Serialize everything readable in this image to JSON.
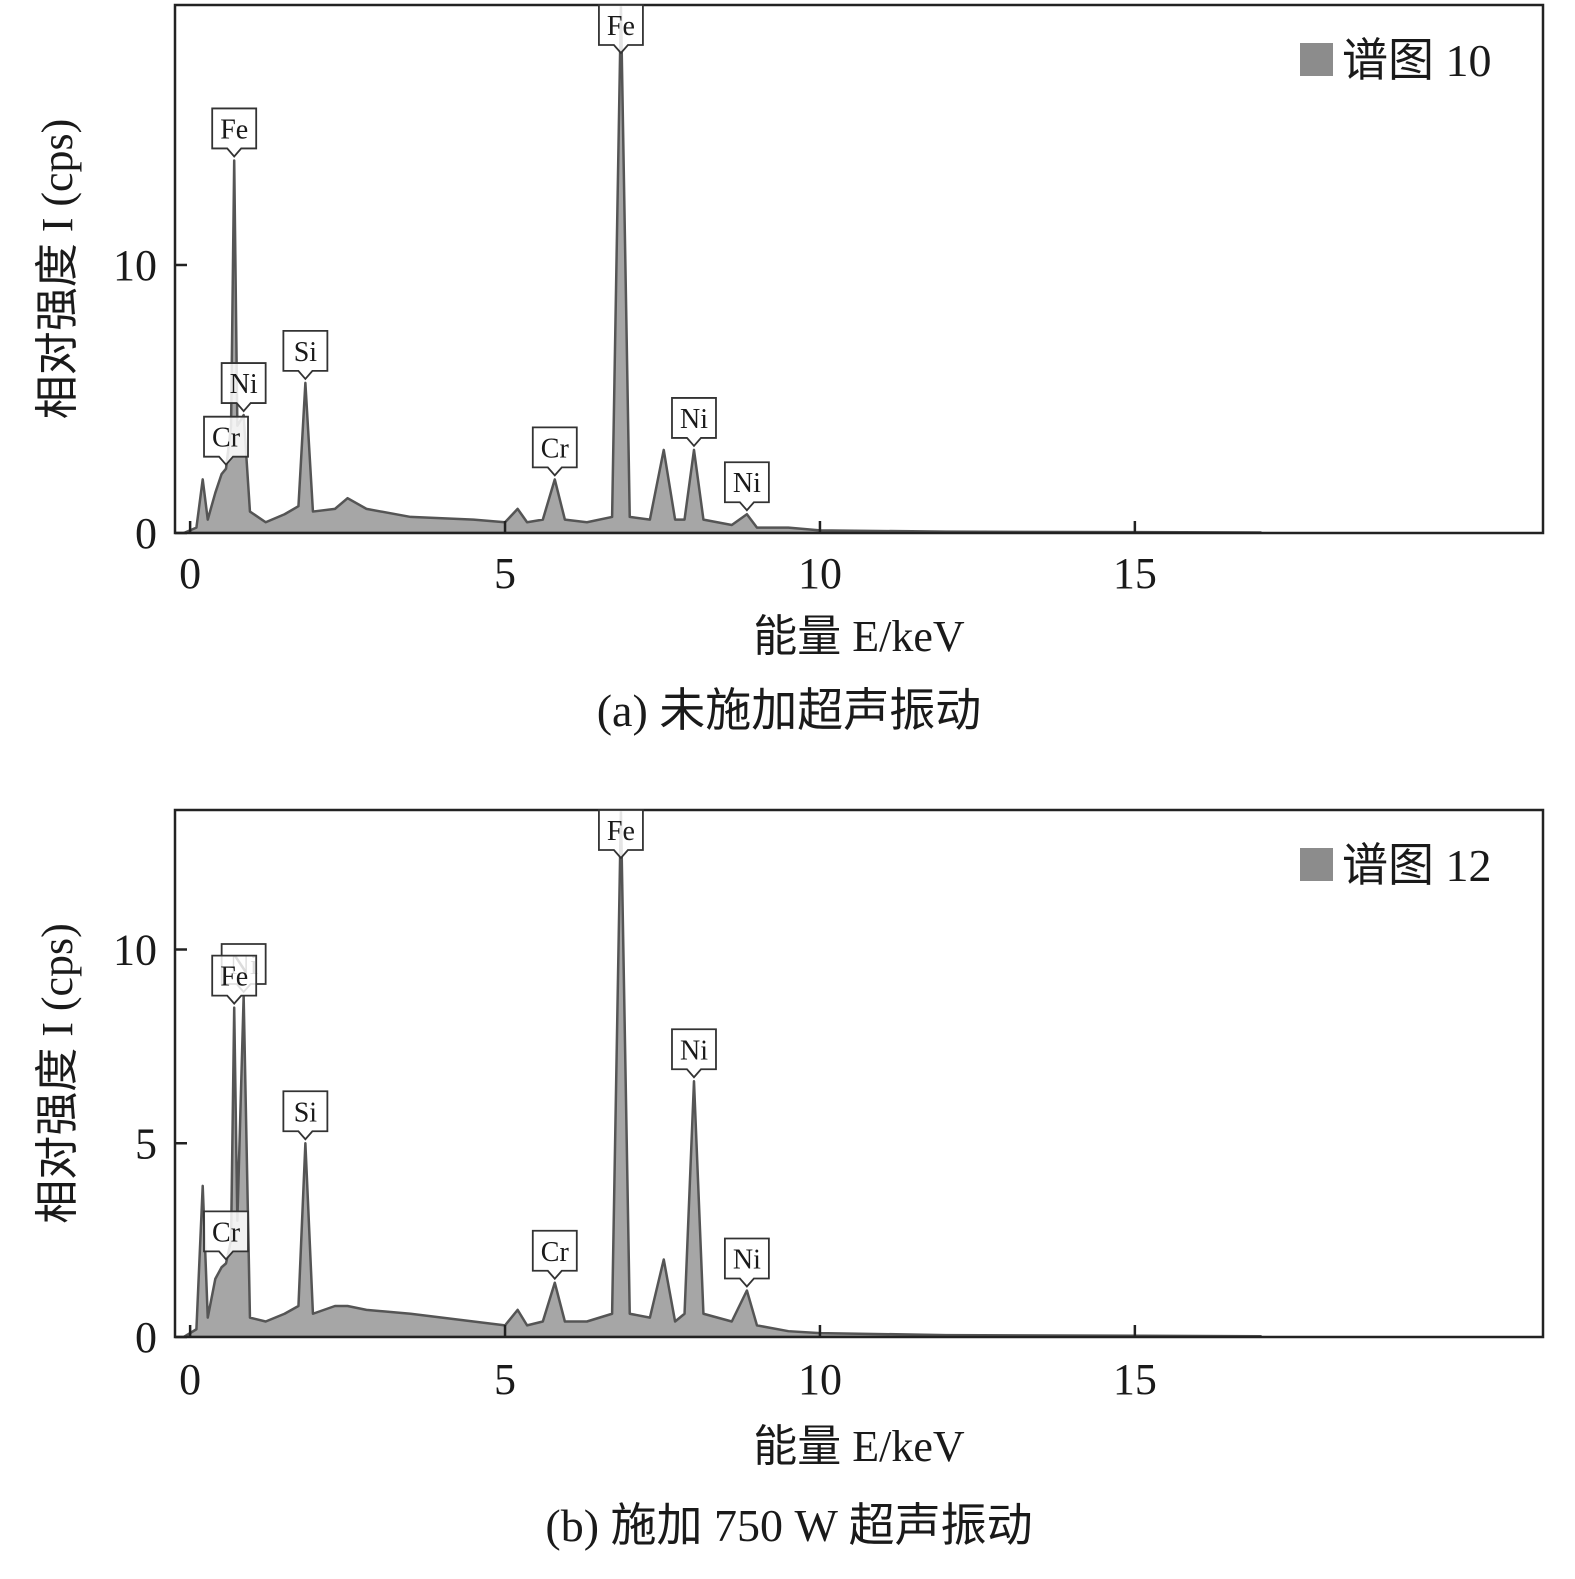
{
  "chart_data": [
    {
      "type": "area",
      "xlabel": "能量 E/keV",
      "ylabel": "相对强度 I (cps)",
      "caption": "(a) 未施加超声振动",
      "xlim": [
        -0.24,
        21.48
      ],
      "ylim": [
        0,
        19.7
      ],
      "xticks": [
        0,
        5,
        10,
        15
      ],
      "yticks": [
        0,
        10
      ],
      "legend": "upper right",
      "x": [
        -0.1,
        0.1,
        0.2,
        0.28,
        0.4,
        0.5,
        0.57,
        0.65,
        0.7,
        0.75,
        0.85,
        0.95,
        1.2,
        1.5,
        1.72,
        1.83,
        1.95,
        2.3,
        2.5,
        2.8,
        3.5,
        4.5,
        5.0,
        5.2,
        5.35,
        5.6,
        5.79,
        5.95,
        6.3,
        6.7,
        6.84,
        6.98,
        7.3,
        7.52,
        7.7,
        7.85,
        8.0,
        8.15,
        8.6,
        8.84,
        9.0,
        9.5,
        10,
        12,
        17
      ],
      "series": [
        {
          "name": "谱图 10",
          "color": "#a6a6a6",
          "line_color": "#555555",
          "legend_color": "#8c8c8c",
          "values": [
            0,
            0.2,
            2.0,
            0.5,
            1.5,
            2.2,
            2.4,
            4.0,
            13.9,
            4.0,
            4.4,
            0.8,
            0.4,
            0.7,
            1.0,
            5.6,
            0.8,
            0.9,
            1.3,
            0.9,
            0.6,
            0.5,
            0.4,
            0.9,
            0.4,
            0.5,
            2.0,
            0.5,
            0.4,
            0.6,
            19.7,
            0.6,
            0.5,
            3.1,
            0.5,
            0.5,
            3.1,
            0.5,
            0.3,
            0.7,
            0.2,
            0.2,
            0.1,
            0.05,
            0.02
          ]
        }
      ],
      "annotations": [
        {
          "text": "Fe",
          "x": 0.7
        },
        {
          "text": "Ni",
          "x": 0.85
        },
        {
          "text": "Cr",
          "x": 0.57
        },
        {
          "text": "Si",
          "x": 1.83
        },
        {
          "text": "Cr",
          "x": 5.79
        },
        {
          "text": "Fe",
          "x": 6.84
        },
        {
          "text": "Ni",
          "x": 8.0
        },
        {
          "text": "Ni",
          "x": 8.84
        }
      ]
    },
    {
      "type": "area",
      "xlabel": "能量 E/keV",
      "ylabel": "相对强度 I (cps)",
      "caption": "(b) 施加 750 W 超声振动",
      "xlim": [
        -0.24,
        21.48
      ],
      "ylim": [
        0,
        13.6
      ],
      "xticks": [
        0,
        5,
        10,
        15
      ],
      "yticks": [
        0,
        5,
        10
      ],
      "legend": "upper right",
      "x": [
        -0.1,
        0.1,
        0.2,
        0.28,
        0.4,
        0.5,
        0.57,
        0.65,
        0.7,
        0.75,
        0.85,
        0.95,
        1.2,
        1.5,
        1.72,
        1.83,
        1.95,
        2.3,
        2.5,
        2.8,
        3.5,
        4.5,
        5.0,
        5.2,
        5.35,
        5.6,
        5.79,
        5.95,
        6.3,
        6.7,
        6.84,
        6.98,
        7.3,
        7.52,
        7.7,
        7.85,
        8.0,
        8.15,
        8.6,
        8.84,
        9.0,
        9.5,
        10,
        12,
        17
      ],
      "series": [
        {
          "name": "谱图 12",
          "color": "#a6a6a6",
          "line_color": "#555555",
          "legend_color": "#8c8c8c",
          "values": [
            0,
            0.2,
            3.9,
            0.5,
            1.5,
            1.8,
            1.9,
            2.5,
            8.5,
            3.0,
            8.8,
            0.5,
            0.4,
            0.6,
            0.8,
            5.0,
            0.6,
            0.8,
            0.8,
            0.7,
            0.6,
            0.4,
            0.3,
            0.7,
            0.3,
            0.4,
            1.4,
            0.4,
            0.4,
            0.6,
            13.6,
            0.6,
            0.5,
            2.0,
            0.4,
            0.6,
            6.6,
            0.6,
            0.4,
            1.2,
            0.3,
            0.15,
            0.1,
            0.05,
            0.02
          ]
        }
      ],
      "annotations": [
        {
          "text": "Ni",
          "x": 0.85
        },
        {
          "text": "Fe",
          "x": 0.7
        },
        {
          "text": "Cr",
          "x": 0.57
        },
        {
          "text": "Si",
          "x": 1.83
        },
        {
          "text": "Cr",
          "x": 5.79
        },
        {
          "text": "Fe",
          "x": 6.84
        },
        {
          "text": "Ni",
          "x": 8.0
        },
        {
          "text": "Ni",
          "x": 8.84
        }
      ]
    }
  ]
}
